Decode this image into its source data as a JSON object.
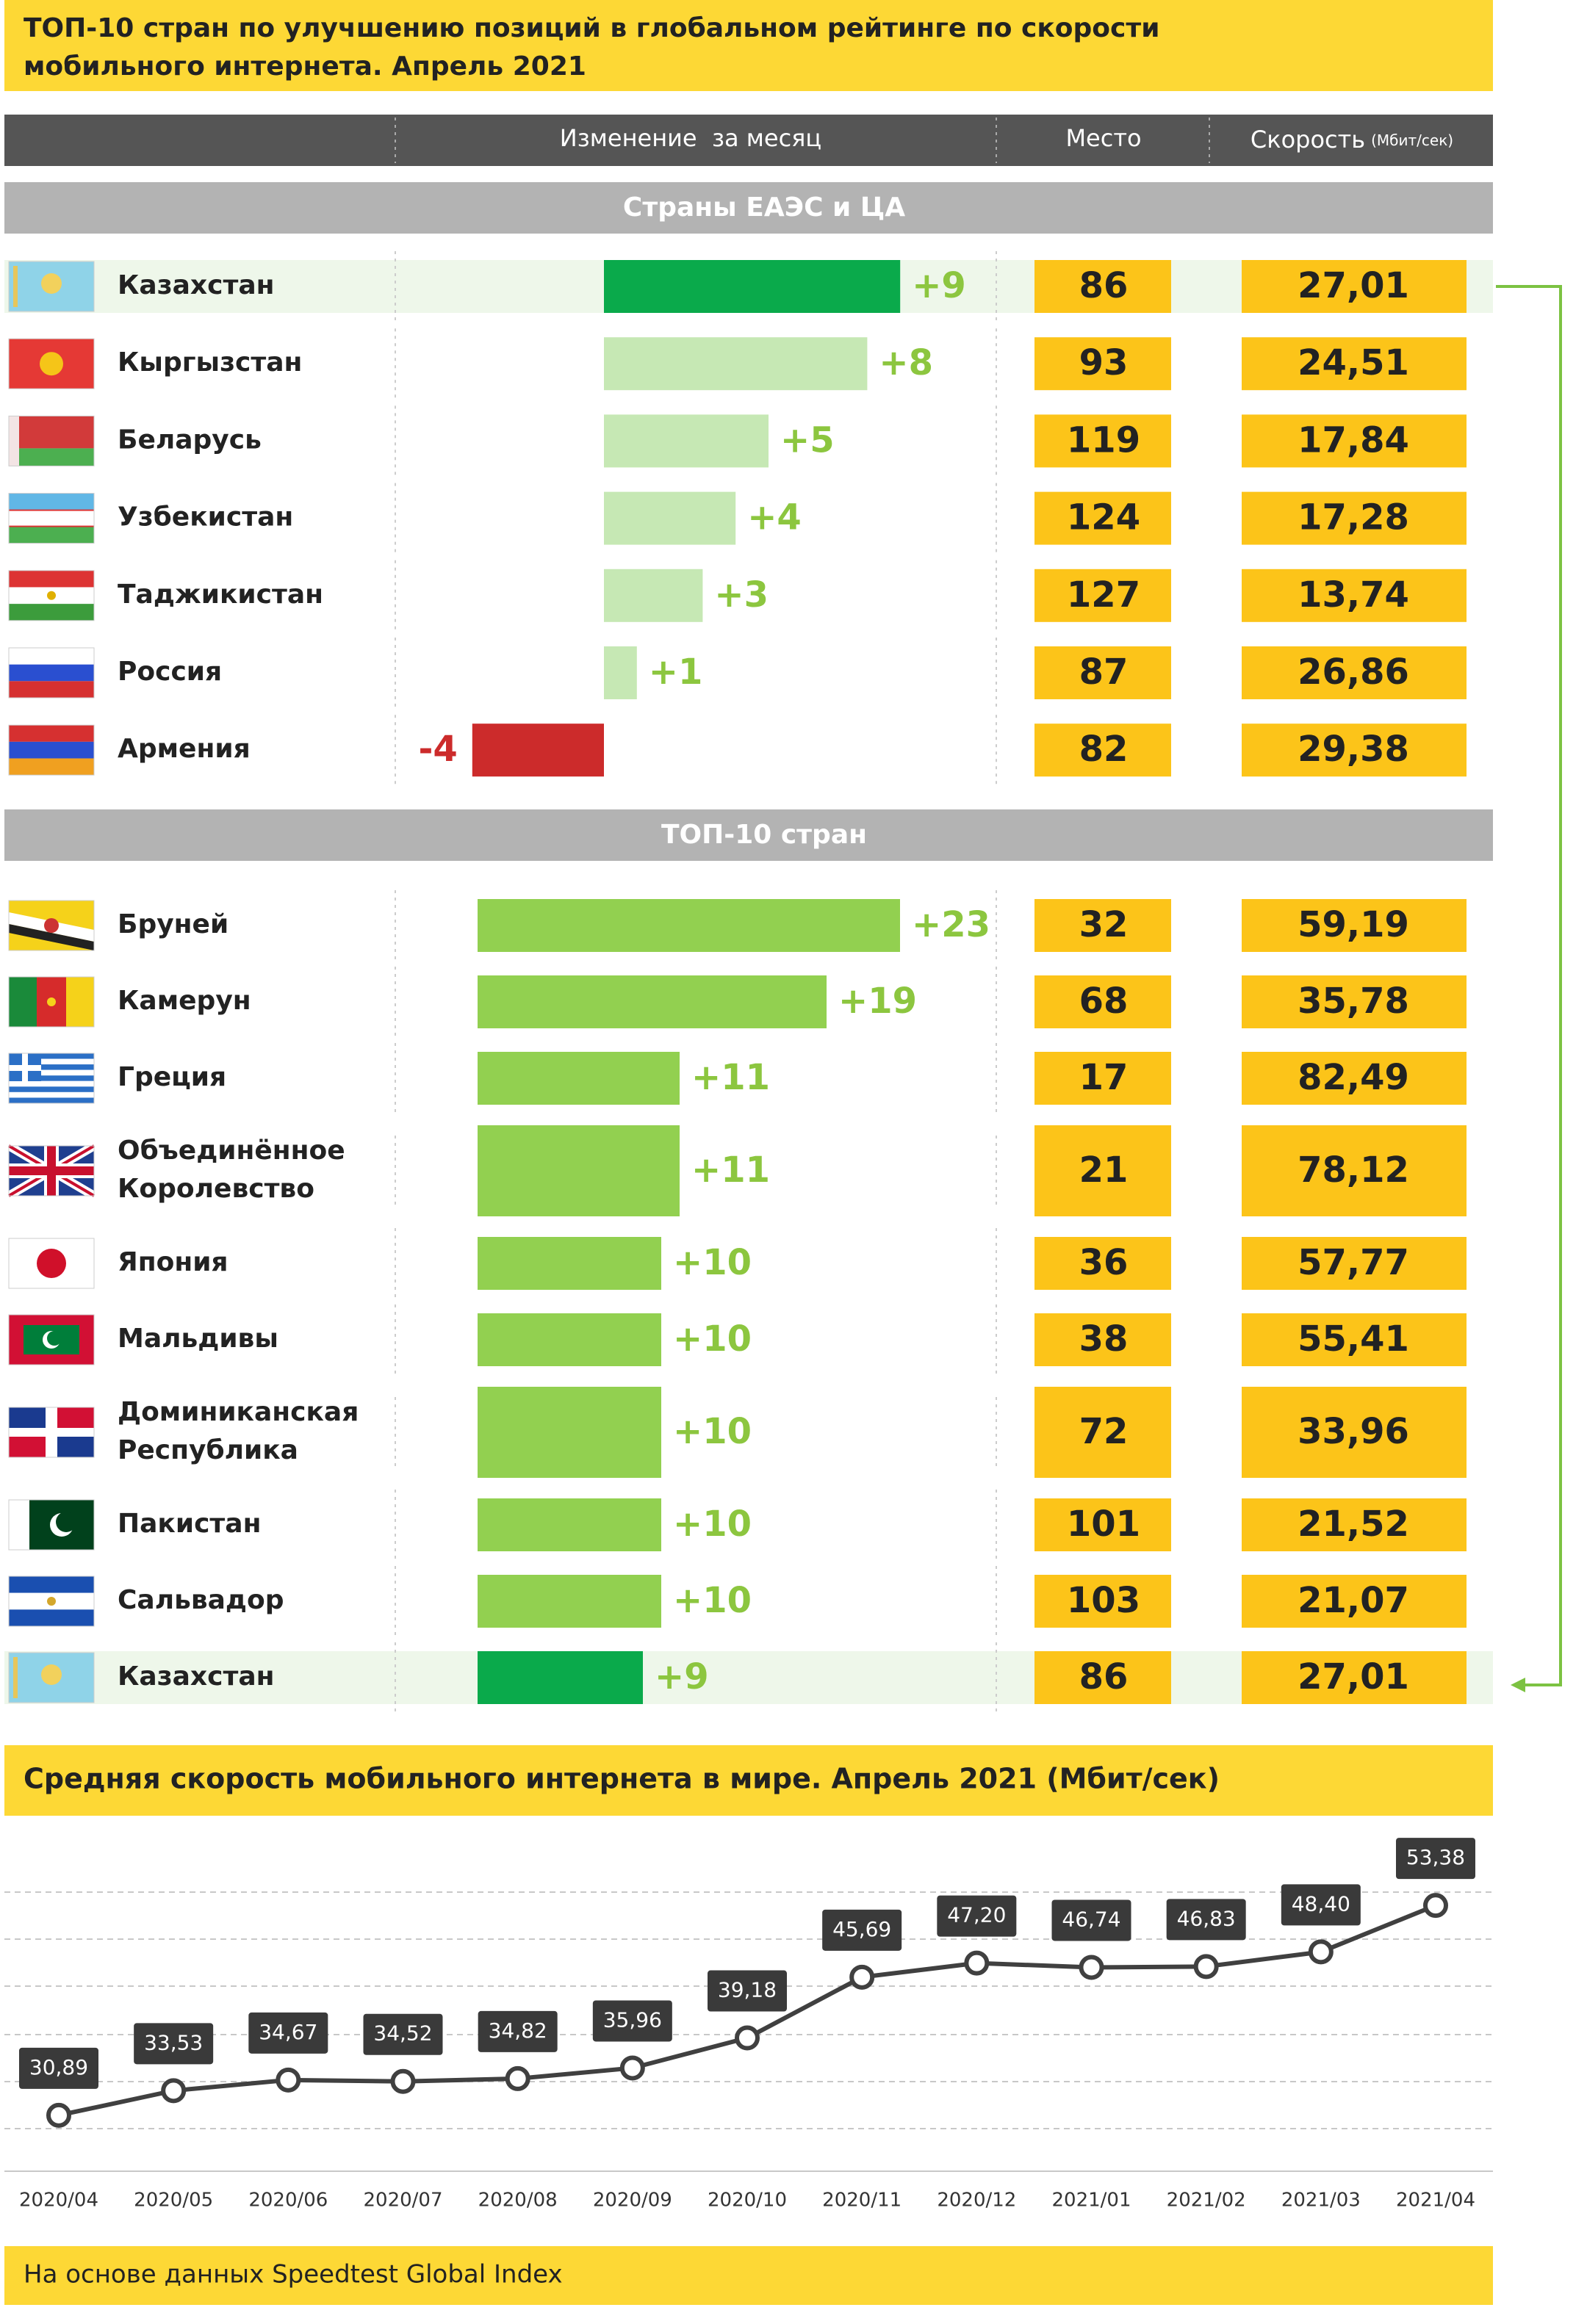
{
  "title": [
    "ТОП-10 стран по улучшению позиций в глобальном рейтинге по скорости",
    "мобильного интернета. Апрель 2021"
  ],
  "columns": {
    "change": "Изменение  за месяц",
    "rank": "Место",
    "speed": "Скорость",
    "speed_unit": "(Мбит/сек)"
  },
  "sections": [
    {
      "title": "Страны ЕАЭС и ЦА",
      "rows": [
        {
          "name": "Казахстан",
          "change": 9,
          "change_label": "+9",
          "rank": 86,
          "speed": "27,01",
          "color": "#0aaa4b",
          "highlight": true
        },
        {
          "name": "Кыргызстан",
          "change": 8,
          "change_label": "+8",
          "rank": 93,
          "speed": "24,51",
          "color": "#c6e8b4"
        },
        {
          "name": "Беларусь",
          "change": 5,
          "change_label": "+5",
          "rank": 119,
          "speed": "17,84",
          "color": "#c6e8b4"
        },
        {
          "name": "Узбекистан",
          "change": 4,
          "change_label": "+4",
          "rank": 124,
          "speed": "17,28",
          "color": "#c6e8b4"
        },
        {
          "name": "Таджикистан",
          "change": 3,
          "change_label": "+3",
          "rank": 127,
          "speed": "13,74",
          "color": "#c6e8b4"
        },
        {
          "name": "Россия",
          "change": 1,
          "change_label": "+1",
          "rank": 87,
          "speed": "26,86",
          "color": "#c6e8b4"
        },
        {
          "name": "Армения",
          "change": -4,
          "change_label": "-4",
          "rank": 82,
          "speed": "29,38",
          "color": "#cc2b2b"
        }
      ]
    },
    {
      "title": "ТОП-10 стран",
      "rows": [
        {
          "name": "Бруней",
          "change": 23,
          "change_label": "+23",
          "rank": 32,
          "speed": "59,19",
          "color": "#92d050"
        },
        {
          "name": "Камерун",
          "change": 19,
          "change_label": "+19",
          "rank": 68,
          "speed": "35,78",
          "color": "#92d050"
        },
        {
          "name": "Греция",
          "change": 11,
          "change_label": "+11",
          "rank": 17,
          "speed": "82,49",
          "color": "#92d050"
        },
        {
          "name": [
            "Объединённое",
            "Королевство"
          ],
          "change": 11,
          "change_label": "+11",
          "rank": 21,
          "speed": "78,12",
          "color": "#92d050"
        },
        {
          "name": "Япония",
          "change": 10,
          "change_label": "+10",
          "rank": 36,
          "speed": "57,77",
          "color": "#92d050"
        },
        {
          "name": "Мальдивы",
          "change": 10,
          "change_label": "+10",
          "rank": 38,
          "speed": "55,41",
          "color": "#92d050"
        },
        {
          "name": [
            "Доминиканская",
            "Республика"
          ],
          "change": 10,
          "change_label": "+10",
          "rank": 72,
          "speed": "33,96",
          "color": "#92d050"
        },
        {
          "name": "Пакистан",
          "change": 10,
          "change_label": "+10",
          "rank": 101,
          "speed": "21,52",
          "color": "#92d050"
        },
        {
          "name": "Сальвадор",
          "change": 10,
          "change_label": "+10",
          "rank": 103,
          "speed": "21,07",
          "color": "#92d050"
        },
        {
          "name": "Казахстан",
          "change": 9,
          "change_label": "+9",
          "rank": 86,
          "speed": "27,01",
          "color": "#0aaa4b",
          "highlight": true
        }
      ]
    }
  ],
  "chart_data": {
    "type": "line",
    "title": "Средняя скорость мобильного интернета в мире. Апрель 2021 (Мбит/сек)",
    "categories": [
      "2020/04",
      "2020/05",
      "2020/06",
      "2020/07",
      "2020/08",
      "2020/09",
      "2020/10",
      "2020/11",
      "2020/12",
      "2021/01",
      "2021/02",
      "2021/03",
      "2021/04"
    ],
    "values": [
      30.89,
      33.53,
      34.67,
      34.52,
      34.82,
      35.96,
      39.18,
      45.69,
      47.2,
      46.74,
      46.83,
      48.4,
      53.38
    ],
    "value_labels": [
      "30,89",
      "33,53",
      "34,67",
      "34,52",
      "34,82",
      "35,96",
      "39,18",
      "45,69",
      "47,20",
      "46,74",
      "46,83",
      "48,40",
      "53,38"
    ],
    "color": "#404040",
    "ylim": [
      26,
      60
    ],
    "grid": true
  },
  "footer": "На основе данных Speedtest Global Index"
}
